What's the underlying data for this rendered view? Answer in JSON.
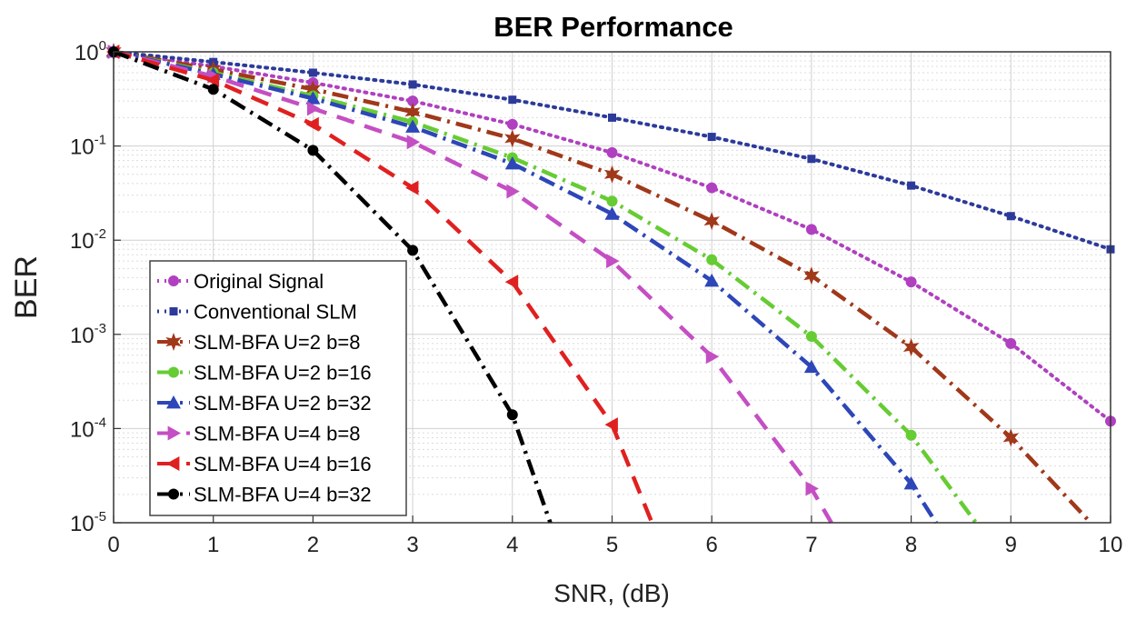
{
  "chart_data": {
    "type": "line",
    "title": "BER Performance",
    "xlabel": "SNR, (dB)",
    "ylabel": "BER",
    "yscale": "log",
    "xlim": [
      0,
      10
    ],
    "ylim": [
      1e-05,
      1
    ],
    "grid": true,
    "minor_grid": true,
    "legend_position": "bottom-left",
    "x_ticks": [
      "0",
      "1",
      "2",
      "3",
      "4",
      "5",
      "6",
      "7",
      "8",
      "9",
      "10"
    ],
    "y_ticks": [
      {
        "base": "10",
        "exp": "0",
        "value": 1
      },
      {
        "base": "10",
        "exp": "-1",
        "value": 0.1
      },
      {
        "base": "10",
        "exp": "-2",
        "value": 0.01
      },
      {
        "base": "10",
        "exp": "-3",
        "value": 0.001
      },
      {
        "base": "10",
        "exp": "-4",
        "value": 0.0001
      },
      {
        "base": "10",
        "exp": "-5",
        "value": 1e-05
      }
    ],
    "series": [
      {
        "name": "Original Signal",
        "color": "#b040c0",
        "dash": "dot",
        "marker": "circle",
        "x": [
          0,
          1,
          2,
          3,
          4,
          5,
          6,
          7,
          8,
          9,
          10
        ],
        "y": [
          1,
          0.7,
          0.47,
          0.3,
          0.17,
          0.085,
          0.036,
          0.013,
          0.0036,
          0.0008,
          0.00012
        ]
      },
      {
        "name": "Conventional SLM",
        "color": "#2c3a9a",
        "dash": "dot",
        "marker": "square",
        "x": [
          0,
          1,
          2,
          3,
          4,
          5,
          6,
          7,
          8,
          9,
          10
        ],
        "y": [
          1,
          0.78,
          0.6,
          0.45,
          0.31,
          0.2,
          0.125,
          0.073,
          0.038,
          0.018,
          0.008
        ]
      },
      {
        "name": "SLM-BFA U=2 b=8",
        "color": "#a0381a",
        "dash": "dashdot",
        "marker": "star",
        "x": [
          0,
          1,
          2,
          3,
          4,
          5,
          6,
          7,
          8,
          9,
          9.8
        ],
        "y": [
          1,
          0.65,
          0.4,
          0.23,
          0.12,
          0.05,
          0.016,
          0.0042,
          0.00073,
          8e-05,
          1e-05
        ]
      },
      {
        "name": "SLM-BFA U=2 b=16",
        "color": "#66cc33",
        "dash": "dashdot",
        "marker": "circle",
        "x": [
          0,
          1,
          2,
          3,
          4,
          5,
          6,
          7,
          8,
          8.65
        ],
        "y": [
          1,
          0.6,
          0.34,
          0.18,
          0.075,
          0.026,
          0.0062,
          0.00095,
          8.5e-05,
          1e-05
        ]
      },
      {
        "name": "SLM-BFA U=2 b=32",
        "color": "#2d46b8",
        "dash": "dashdot",
        "marker": "triangle-up",
        "x": [
          0,
          1,
          2,
          3,
          4,
          5,
          6,
          7,
          8,
          8.25
        ],
        "y": [
          1,
          0.58,
          0.32,
          0.16,
          0.065,
          0.019,
          0.0037,
          0.00045,
          2.6e-05,
          1e-05
        ]
      },
      {
        "name": "SLM-BFA U=4 b=8",
        "color": "#c44ec4",
        "dash": "dash",
        "marker": "triangle-right",
        "x": [
          0,
          1,
          2,
          3,
          4,
          5,
          6,
          7,
          7.2
        ],
        "y": [
          1,
          0.55,
          0.25,
          0.11,
          0.033,
          0.006,
          0.00058,
          2.3e-05,
          1e-05
        ]
      },
      {
        "name": "SLM-BFA U=4 b=16",
        "color": "#e02020",
        "dash": "dash",
        "marker": "triangle-left",
        "x": [
          0,
          1,
          2,
          3,
          4,
          5,
          5.4
        ],
        "y": [
          1,
          0.5,
          0.17,
          0.036,
          0.0036,
          0.00011,
          1e-05
        ]
      },
      {
        "name": "SLM-BFA U=4 b=32",
        "color": "#000000",
        "dash": "dashdot",
        "marker": "circle",
        "x": [
          0,
          1,
          2,
          3,
          4,
          4.38
        ],
        "y": [
          1,
          0.4,
          0.09,
          0.0078,
          0.00014,
          1e-05
        ]
      }
    ]
  }
}
